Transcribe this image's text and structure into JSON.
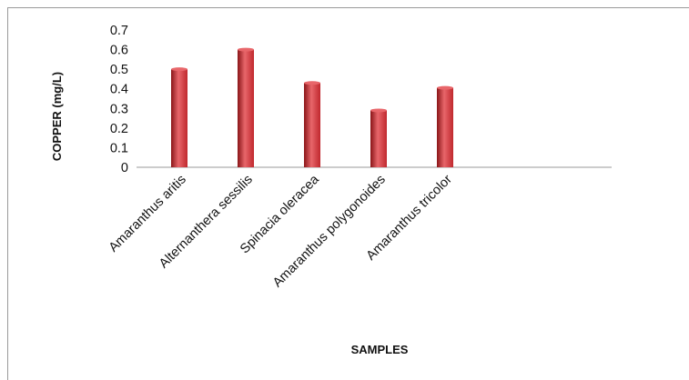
{
  "chart_data": {
    "type": "bar",
    "title": "",
    "xlabel": "SAMPLES",
    "ylabel": "COPPER (mg/L)",
    "ylim": [
      0,
      0.7
    ],
    "yticks": [
      "0",
      "0.1",
      "0.2",
      "0.3",
      "0.4",
      "0.5",
      "0.6",
      "0.7"
    ],
    "grid": false,
    "legend": "none",
    "categories": [
      "Amaranthus aritis",
      "Alternanthera sessilis",
      "Spinacia oleracea",
      "Amaranthus polygonoides",
      "Amaranthus tricolor"
    ],
    "values": [
      0.5,
      0.6,
      0.43,
      0.29,
      0.405
    ],
    "colors": {
      "bar": "#c0282e",
      "bar_light": "#e8666a",
      "bar_dark": "#8a1518",
      "axis": "#999999"
    }
  }
}
